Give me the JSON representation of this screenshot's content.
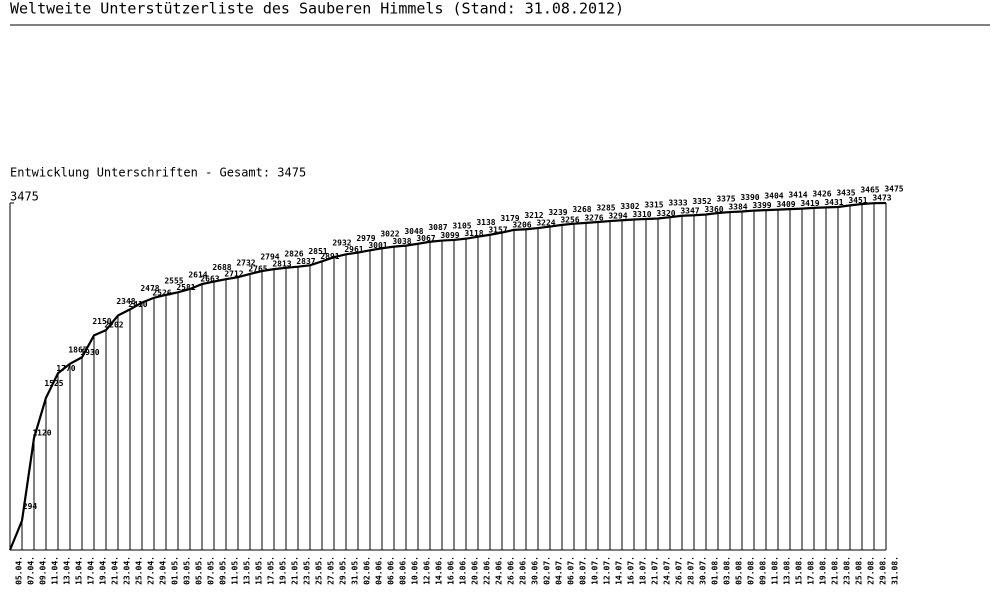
{
  "header": {
    "title": "Weltweite Unterstützerliste des Sauberen Himmels (Stand: 31.08.2012)"
  },
  "chart_data": {
    "type": "line",
    "title": "Entwicklung Unterschriften - Gesamt: 3475",
    "categories": [
      "05.04.",
      "07.04.",
      "09.04.",
      "11.04.",
      "13.04.",
      "15.04.",
      "17.04.",
      "19.04.",
      "21.04.",
      "23.04.",
      "25.04.",
      "27.04.",
      "29.04.",
      "01.05.",
      "03.05.",
      "05.05.",
      "07.05.",
      "09.05.",
      "11.05.",
      "13.05.",
      "15.05.",
      "17.05.",
      "19.05.",
      "21.05.",
      "23.05.",
      "25.05.",
      "27.05.",
      "29.05.",
      "31.05.",
      "02.06.",
      "04.06.",
      "06.06.",
      "08.06.",
      "10.06.",
      "12.06.",
      "14.06.",
      "16.06.",
      "18.06.",
      "20.06.",
      "22.06.",
      "24.06.",
      "26.06.",
      "28.06.",
      "30.06.",
      "02.07.",
      "04.07.",
      "06.07.",
      "08.07.",
      "10.07.",
      "12.07.",
      "14.07.",
      "16.07.",
      "18.07.",
      "21.07.",
      "24.07.",
      "26.07.",
      "28.07.",
      "30.07.",
      "01.08.",
      "03.08.",
      "05.08.",
      "07.08.",
      "09.08.",
      "11.08.",
      "13.08.",
      "15.08.",
      "17.08.",
      "19.08.",
      "21.08.",
      "23.08.",
      "25.08.",
      "27.08.",
      "29.08.",
      "31.08."
    ],
    "values": [
      0,
      294,
      1120,
      1525,
      1770,
      1865,
      1930,
      2150,
      2202,
      2348,
      2410,
      2478,
      2526,
      2555,
      2581,
      2614,
      2663,
      2688,
      2712,
      2732,
      2765,
      2794,
      2813,
      2826,
      2837,
      2851,
      2891,
      2932,
      2961,
      2979,
      3001,
      3022,
      3038,
      3048,
      3067,
      3087,
      3099,
      3105,
      3118,
      3138,
      3157,
      3179,
      3206,
      3212,
      3224,
      3239,
      3256,
      3268,
      3276,
      3285,
      3294,
      3302,
      3310,
      3315,
      3320,
      3333,
      3347,
      3352,
      3360,
      3375,
      3384,
      3390,
      3399,
      3404,
      3409,
      3414,
      3419,
      3426,
      3431,
      3435,
      3451,
      3465,
      3473,
      3475
    ],
    "value_labels": [
      null,
      "294",
      "1120",
      "1525",
      "1770",
      "1865",
      "1930",
      "2150",
      "2202",
      "2348",
      "2410",
      "2478",
      "2526",
      "2555",
      "2581",
      "2614",
      "2663",
      "2688",
      "2712",
      "2732",
      "2765",
      "2794",
      "2813",
      "2826",
      "2837",
      "2851",
      "2891",
      "2932",
      "2961",
      "2979",
      "3001",
      "3022",
      "3038",
      "3048",
      "3067",
      "3087",
      "3099",
      "3105",
      "3118",
      "3138",
      "3157",
      "3179",
      "3206",
      "3212",
      "3224",
      "3239",
      "3256",
      "3268",
      "3276",
      "3285",
      "3294",
      "3302",
      "3310",
      "3315",
      "3320",
      "3333",
      "3347",
      "3352",
      "3360",
      "3375",
      "3384",
      "3390",
      "3399",
      "3404",
      "3409",
      "3414",
      "3419",
      "3426",
      "3431",
      "3435",
      "3451",
      "3465",
      "3473",
      "3475"
    ],
    "color": "#000000",
    "ylim": [
      0,
      3475
    ],
    "yticks": [
      3475
    ]
  }
}
